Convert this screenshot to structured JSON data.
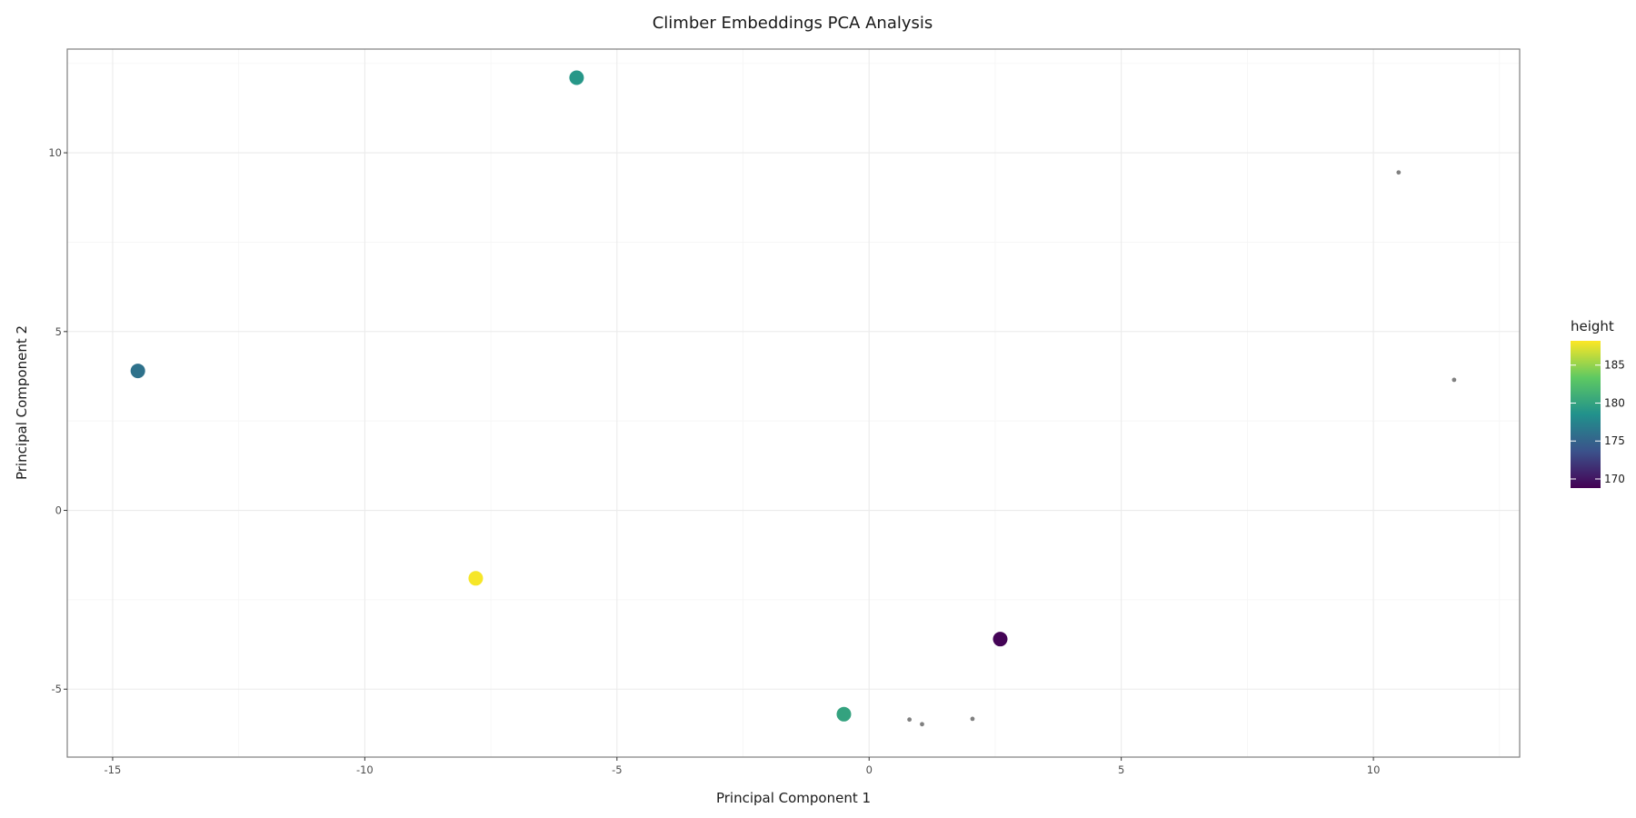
{
  "chart_data": {
    "type": "scatter",
    "title": "Climber Embeddings PCA Analysis",
    "xlabel": "Principal Component 1",
    "ylabel": "Principal Component 2",
    "xlim": [
      -15.9,
      12.9
    ],
    "ylim": [
      -6.9,
      12.9
    ],
    "x_ticks": [
      -15,
      -10,
      -5,
      0,
      5,
      10
    ],
    "x_tick_labels": [
      "-15",
      "-10",
      "-5",
      "0",
      "5",
      "10"
    ],
    "y_ticks": [
      -5,
      0,
      5,
      10
    ],
    "y_tick_labels": [
      "-5",
      "0",
      "5",
      "10"
    ],
    "grid": true,
    "legend": {
      "title": "height",
      "placement": "right",
      "type": "colorbar",
      "range": [
        168.8,
        188.2
      ],
      "ticks": [
        170,
        175,
        180,
        185
      ],
      "tick_labels": [
        "170",
        "175",
        "180",
        "185"
      ]
    },
    "points_colored": [
      {
        "x": -5.8,
        "y": 12.1,
        "height": 179
      },
      {
        "x": -14.5,
        "y": 3.9,
        "height": 176
      },
      {
        "x": -7.8,
        "y": -1.9,
        "height": 188
      },
      {
        "x": 2.6,
        "y": -3.6,
        "height": 169
      },
      {
        "x": -0.5,
        "y": -5.7,
        "height": 180
      }
    ],
    "points_missing": [
      {
        "x": 10.5,
        "y": 9.45
      },
      {
        "x": 11.6,
        "y": 3.65
      },
      {
        "x": 0.8,
        "y": -5.85
      },
      {
        "x": 1.05,
        "y": -5.98
      },
      {
        "x": 2.05,
        "y": -5.83
      }
    ],
    "colors": {
      "missing_point": "#808080",
      "grid": "#ebebeb",
      "panel_border": "#7f7f7f",
      "colorscale": [
        "#440154",
        "#3b528b",
        "#21918c",
        "#5ec962",
        "#fde725"
      ]
    }
  }
}
